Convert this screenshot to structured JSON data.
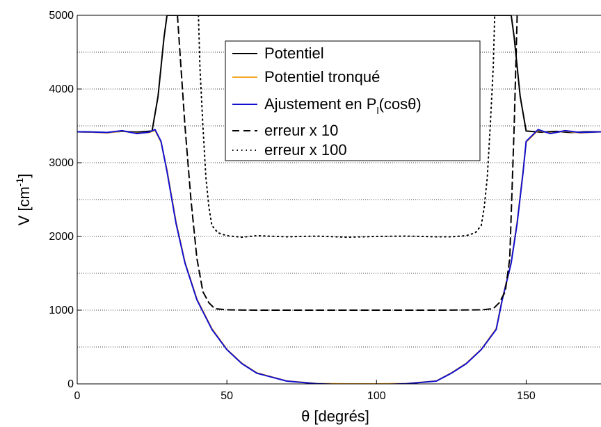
{
  "chart_data": {
    "type": "line",
    "xlabel": "θ [degrés]",
    "ylabel": "V [cm-1]",
    "ylabel_parts": {
      "main": "V [cm",
      "sup": "-1",
      "end": "]"
    },
    "xlim": [
      0,
      175
    ],
    "ylim": [
      0,
      5000
    ],
    "x_ticks": [
      0,
      50,
      100,
      150
    ],
    "y_ticks": [
      0,
      1000,
      2000,
      3000,
      4000,
      5000
    ],
    "y_grid": [
      500,
      1000,
      1500,
      2000,
      2500,
      3000,
      3500,
      4000,
      4500
    ],
    "grid": "horizontal dotted",
    "legend_position": "top-center",
    "series": [
      {
        "name": "Potentiel",
        "color": "#000000",
        "dash": "solid",
        "x": [
          0,
          10,
          15,
          20,
          25,
          27,
          28,
          29,
          30,
          30.5,
          144.5,
          145,
          146,
          147,
          148,
          150,
          155,
          160,
          165,
          170,
          175
        ],
        "y": [
          3420,
          3410,
          3425,
          3415,
          3430,
          3900,
          4300,
          4700,
          5000,
          5000,
          5000,
          5000,
          4700,
          4300,
          3900,
          3430,
          3415,
          3425,
          3410,
          3420,
          3420
        ]
      },
      {
        "name": "Potentiel tronqué",
        "color": "#f5a623",
        "dash": "solid",
        "x": [
          0,
          5,
          10,
          15,
          20,
          24,
          26,
          28,
          30,
          33,
          36,
          40,
          45,
          50,
          55,
          60,
          70,
          80,
          90,
          100,
          110,
          120,
          125,
          130,
          135,
          140,
          142,
          145,
          147,
          149,
          150,
          154,
          158,
          163,
          168,
          175
        ],
        "y": [
          3420,
          3415,
          3405,
          3430,
          3400,
          3410,
          3440,
          3280,
          2900,
          2200,
          1650,
          1150,
          750,
          470,
          280,
          150,
          40,
          5,
          0,
          0,
          5,
          40,
          150,
          280,
          470,
          750,
          1150,
          1650,
          2200,
          2900,
          3280,
          3440,
          3400,
          3430,
          3405,
          3420
        ]
      },
      {
        "name": "Ajustement en Pl(cosθ)",
        "legend_parts": {
          "main": "Ajustement en P",
          "sub": "l",
          "end": "(cosθ)"
        },
        "color": "#1010d0",
        "dash": "solid",
        "x": [
          0,
          5,
          10,
          15,
          20,
          24,
          26,
          28,
          30,
          33,
          36,
          40,
          45,
          50,
          55,
          60,
          70,
          80,
          90,
          100,
          110,
          120,
          125,
          130,
          135,
          140,
          142,
          145,
          147,
          149,
          150,
          154,
          158,
          163,
          168,
          175
        ],
        "y": [
          3420,
          3418,
          3410,
          3435,
          3395,
          3415,
          3450,
          3290,
          2880,
          2180,
          1640,
          1140,
          740,
          465,
          275,
          145,
          38,
          3,
          -10,
          -10,
          3,
          38,
          145,
          275,
          465,
          740,
          1140,
          1640,
          2180,
          2880,
          3290,
          3450,
          3395,
          3435,
          3410,
          3420
        ]
      },
      {
        "name": "erreur x 10",
        "color": "#000000",
        "dash": "long-dash",
        "x": [
          33.5,
          34.5,
          36,
          38,
          40,
          42,
          44,
          46,
          50,
          60,
          80,
          100,
          120,
          135,
          139,
          141,
          143,
          144.5,
          146,
          147
        ],
        "y": [
          5000,
          4400,
          3500,
          2500,
          1700,
          1250,
          1100,
          1020,
          1005,
          1000,
          1000,
          1000,
          1000,
          1005,
          1020,
          1100,
          1250,
          1700,
          3500,
          5000
        ]
      },
      {
        "name": "erreur x 100",
        "color": "#000000",
        "dash": "dotted",
        "x": [
          40.5,
          41,
          42,
          43,
          44,
          45,
          47,
          50,
          55,
          60,
          70,
          80,
          90,
          100,
          110,
          120,
          125,
          130,
          133,
          135,
          136,
          137,
          138,
          139,
          139.5
        ],
        "y": [
          5000,
          4300,
          3500,
          2800,
          2400,
          2150,
          2050,
          2010,
          1990,
          2010,
          1995,
          2005,
          1990,
          2000,
          2005,
          1995,
          1995,
          2010,
          2050,
          2150,
          2400,
          2800,
          3500,
          4300,
          5000
        ]
      }
    ]
  }
}
